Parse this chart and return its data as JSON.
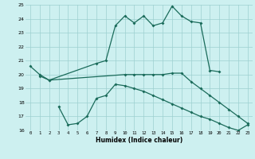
{
  "xlabel": "Humidex (Indice chaleur)",
  "x": [
    0,
    1,
    2,
    3,
    4,
    5,
    6,
    7,
    8,
    9,
    10,
    11,
    12,
    13,
    14,
    15,
    16,
    17,
    18,
    19,
    20,
    21,
    22,
    23
  ],
  "line1": [
    20.6,
    20.0,
    19.6,
    null,
    null,
    null,
    null,
    20.8,
    21.0,
    23.5,
    24.2,
    23.7,
    24.2,
    23.5,
    23.7,
    24.9,
    24.2,
    23.8,
    23.7,
    20.3,
    20.2,
    null,
    null,
    null
  ],
  "line2": [
    null,
    19.9,
    19.6,
    null,
    null,
    null,
    null,
    null,
    null,
    null,
    20.0,
    20.0,
    20.0,
    20.0,
    20.0,
    20.1,
    20.1,
    19.5,
    19.0,
    18.5,
    18.0,
    17.5,
    17.0,
    16.5
  ],
  "line3": [
    null,
    null,
    null,
    17.7,
    16.4,
    16.5,
    17.0,
    18.3,
    18.5,
    19.3,
    19.2,
    19.0,
    18.8,
    18.5,
    18.2,
    17.9,
    17.6,
    17.3,
    17.0,
    16.8,
    16.5,
    16.2,
    16.0,
    16.4
  ],
  "bg_color": "#cdf0f0",
  "grid_color": "#9dcfcf",
  "line_color": "#1a6b5a",
  "ylim": [
    16,
    25
  ],
  "yticks": [
    16,
    17,
    18,
    19,
    20,
    21,
    22,
    23,
    24,
    25
  ],
  "xticks": [
    0,
    1,
    2,
    3,
    4,
    5,
    6,
    7,
    8,
    9,
    10,
    11,
    12,
    13,
    14,
    15,
    16,
    17,
    18,
    19,
    20,
    21,
    22,
    23
  ]
}
